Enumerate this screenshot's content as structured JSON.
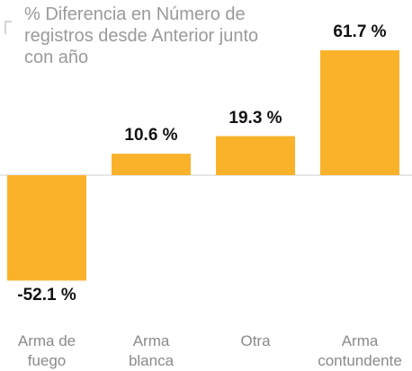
{
  "chart_data": {
    "type": "bar",
    "title": "% Diferencia en Número de registros desde Anterior junto con año",
    "categories": [
      "Arma de fuego",
      "Arma blanca",
      "Otra",
      "Arma contundente"
    ],
    "values": [
      -52.1,
      10.6,
      19.3,
      61.7
    ],
    "value_labels": [
      "-52.1 %",
      "10.6 %",
      "19.3 %",
      "61.7 %"
    ],
    "color": "#fbb22b",
    "ylim": [
      -70,
      70
    ]
  }
}
